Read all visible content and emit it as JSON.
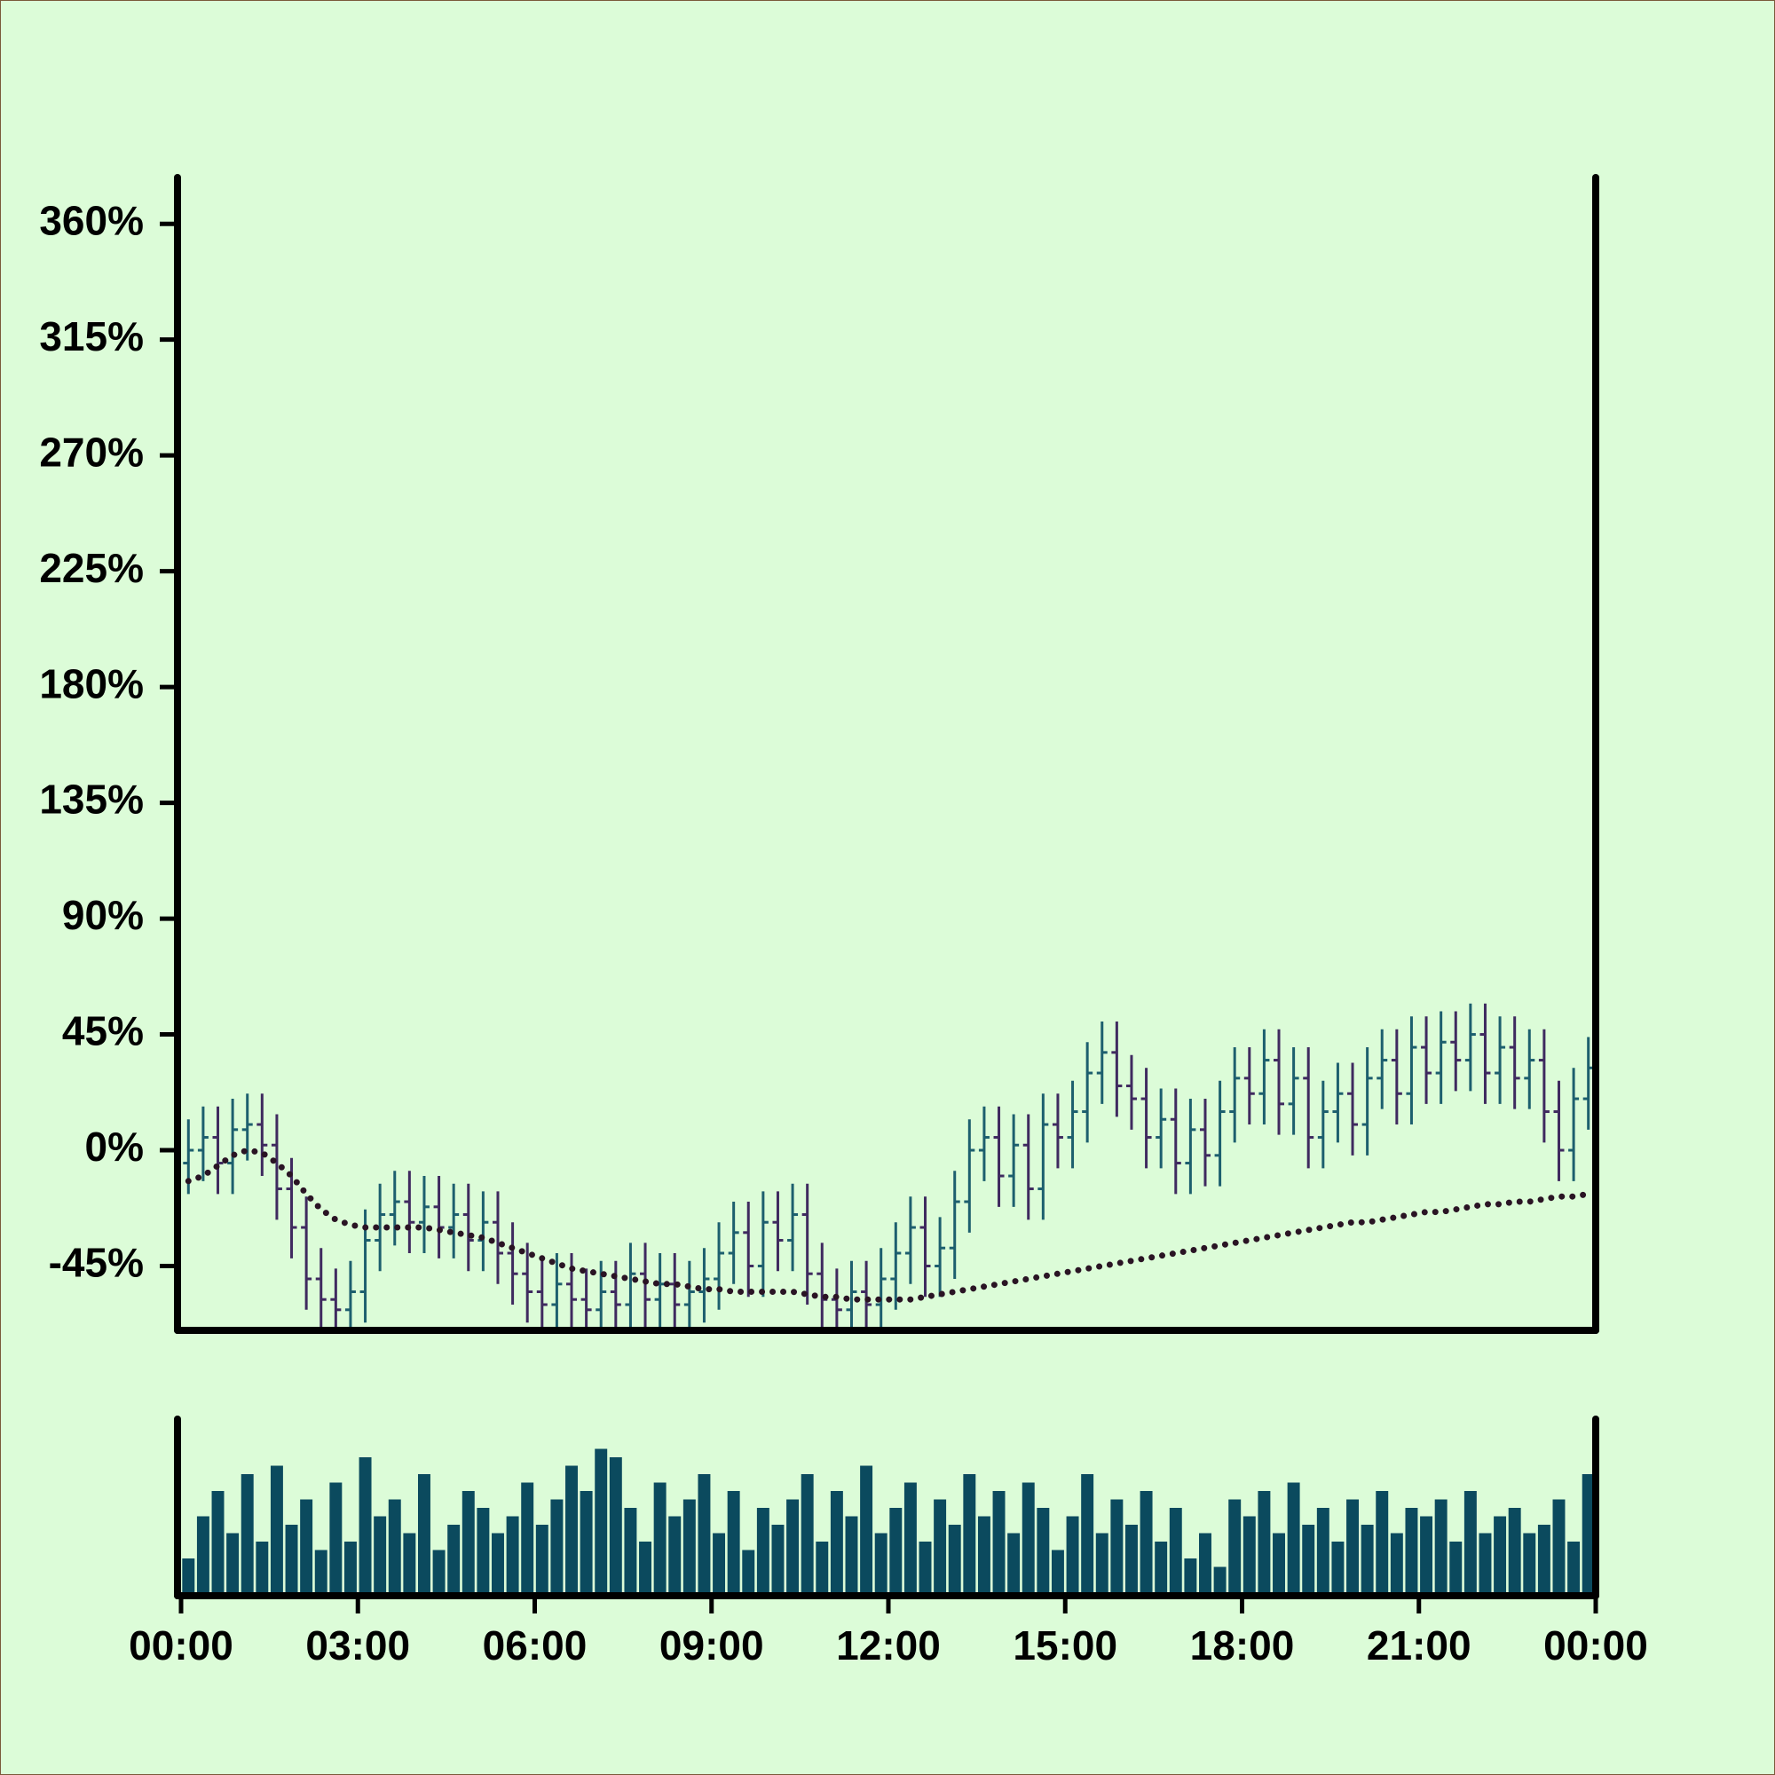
{
  "chart_data": {
    "type": "ohlc",
    "x": [
      0.125,
      0.375,
      0.625,
      0.875,
      1.125,
      1.375,
      1.625,
      1.875,
      2.125,
      2.375,
      2.625,
      2.875,
      3.125,
      3.375,
      3.625,
      3.875,
      4.125,
      4.375,
      4.625,
      4.875,
      5.125,
      5.375,
      5.625,
      5.875,
      6.125,
      6.375,
      6.625,
      6.875,
      7.125,
      7.375,
      7.625,
      7.875,
      8.125,
      8.375,
      8.625,
      8.875,
      9.125,
      9.375,
      9.625,
      9.875,
      10.125,
      10.375,
      10.625,
      10.875,
      11.125,
      11.375,
      11.625,
      11.875,
      12.125,
      12.375,
      12.625,
      12.875,
      13.125,
      13.375,
      13.625,
      13.875,
      14.125,
      14.375,
      14.625,
      14.875,
      15.125,
      15.375,
      15.625,
      15.875,
      16.125,
      16.375,
      16.625,
      16.875,
      17.125,
      17.375,
      17.625,
      17.875,
      18.125,
      18.375,
      18.625,
      18.875,
      19.125,
      19.375,
      19.625,
      19.875,
      20.125,
      20.375,
      20.625,
      20.875,
      21.125,
      21.375,
      21.625,
      21.875,
      22.125,
      22.375,
      22.625,
      22.875,
      23.125,
      23.375,
      23.625,
      23.875
    ],
    "open": [
      -5,
      0,
      5,
      -5,
      8,
      10,
      2,
      -15,
      -30,
      -50,
      -58,
      -62,
      -55,
      -35,
      -25,
      -20,
      -28,
      -22,
      -30,
      -25,
      -35,
      -28,
      -40,
      -48,
      -55,
      -60,
      -52,
      -58,
      -62,
      -55,
      -60,
      -48,
      -58,
      -52,
      -60,
      -55,
      -50,
      -40,
      -32,
      -45,
      -28,
      -35,
      -25,
      -48,
      -58,
      -62,
      -55,
      -60,
      -50,
      -40,
      -30,
      -45,
      -38,
      -20,
      0,
      5,
      -10,
      2,
      -15,
      10,
      5,
      15,
      30,
      38,
      25,
      20,
      5,
      12,
      -5,
      8,
      -2,
      15,
      28,
      22,
      35,
      18,
      28,
      5,
      15,
      22,
      10,
      28,
      35,
      22,
      40,
      30,
      42,
      35,
      45,
      30,
      40,
      28,
      35,
      15,
      0,
      20
    ],
    "high": [
      12,
      17,
      17,
      20,
      22,
      22,
      14,
      -3,
      -18,
      -38,
      -46,
      -43,
      -23,
      -13,
      -8,
      -8,
      -10,
      -10,
      -13,
      -13,
      -16,
      -16,
      -28,
      -36,
      -43,
      -40,
      -40,
      -46,
      -43,
      -43,
      -36,
      -36,
      -40,
      -40,
      -43,
      -38,
      -28,
      -20,
      -20,
      -16,
      -16,
      -13,
      -13,
      -36,
      -46,
      -43,
      -43,
      -38,
      -28,
      -18,
      -18,
      -26,
      -8,
      12,
      17,
      17,
      14,
      14,
      22,
      22,
      27,
      42,
      50,
      50,
      37,
      32,
      24,
      24,
      20,
      20,
      27,
      40,
      40,
      47,
      47,
      40,
      40,
      27,
      34,
      34,
      40,
      47,
      47,
      52,
      52,
      54,
      54,
      57,
      57,
      52,
      52,
      47,
      47,
      27,
      32,
      44
    ],
    "low": [
      -17,
      -12,
      -17,
      -17,
      -4,
      -10,
      -27,
      -42,
      -62,
      -70,
      -74,
      -74,
      -67,
      -47,
      -37,
      -40,
      -40,
      -42,
      -42,
      -47,
      -47,
      -52,
      -60,
      -67,
      -72,
      -72,
      -70,
      -74,
      -74,
      -72,
      -72,
      -70,
      -70,
      -72,
      -72,
      -67,
      -62,
      -52,
      -57,
      -57,
      -47,
      -47,
      -60,
      -70,
      -74,
      -74,
      -72,
      -72,
      -62,
      -52,
      -57,
      -57,
      -50,
      -32,
      -12,
      -22,
      -22,
      -27,
      -27,
      -7,
      -7,
      3,
      18,
      13,
      8,
      -7,
      -7,
      -17,
      -17,
      -14,
      -14,
      3,
      10,
      10,
      6,
      6,
      -7,
      -7,
      3,
      -2,
      -2,
      16,
      10,
      10,
      18,
      18,
      23,
      23,
      18,
      18,
      16,
      16,
      3,
      -12,
      -12,
      8
    ],
    "close": [
      0,
      5,
      -5,
      8,
      10,
      2,
      -15,
      -30,
      -50,
      -58,
      -62,
      -55,
      -35,
      -25,
      -20,
      -28,
      -22,
      -30,
      -25,
      -35,
      -28,
      -40,
      -48,
      -55,
      -60,
      -52,
      -58,
      -62,
      -55,
      -60,
      -48,
      -58,
      -52,
      -60,
      -55,
      -50,
      -40,
      -32,
      -45,
      -28,
      -35,
      -25,
      -48,
      -58,
      -62,
      -55,
      -60,
      -50,
      -40,
      -30,
      -45,
      -38,
      -20,
      0,
      5,
      -10,
      2,
      -15,
      10,
      5,
      15,
      30,
      38,
      25,
      20,
      5,
      12,
      -5,
      8,
      -2,
      15,
      28,
      22,
      35,
      18,
      28,
      5,
      15,
      22,
      10,
      28,
      35,
      22,
      40,
      30,
      42,
      35,
      45,
      30,
      40,
      28,
      35,
      15,
      0,
      20,
      32
    ],
    "up_color": "#1d5f6e",
    "down_color": "#3f2a5f",
    "moving_average": {
      "color": "#2a1424",
      "values": [
        -12,
        -10,
        -6,
        -2,
        0,
        -1,
        -5,
        -10,
        -17,
        -23,
        -27,
        -29,
        -30,
        -30,
        -30,
        -30,
        -30,
        -31,
        -32,
        -33,
        -34,
        -36,
        -38,
        -40,
        -42,
        -44,
        -46,
        -47,
        -48,
        -49,
        -50,
        -51,
        -52,
        -52,
        -53,
        -54,
        -54,
        -55,
        -55,
        -55,
        -55,
        -55,
        -56,
        -57,
        -57,
        -58,
        -58,
        -58,
        -58,
        -58,
        -57,
        -56,
        -55,
        -54,
        -53,
        -52,
        -51,
        -50,
        -49,
        -48,
        -47,
        -46,
        -45,
        -44,
        -43,
        -42,
        -41,
        -40,
        -39,
        -38,
        -37,
        -36,
        -35,
        -34,
        -33,
        -32,
        -31,
        -30,
        -29,
        -28,
        -28,
        -27,
        -26,
        -25,
        -24,
        -24,
        -23,
        -22,
        -21,
        -21,
        -20,
        -20,
        -19,
        -18,
        -18,
        -17
      ]
    },
    "volume": {
      "color": "#0b4a5e",
      "ylim": [
        0,
        100
      ],
      "values": [
        20,
        45,
        60,
        35,
        70,
        30,
        75,
        40,
        55,
        25,
        65,
        30,
        80,
        45,
        55,
        35,
        70,
        25,
        40,
        60,
        50,
        35,
        45,
        65,
        40,
        55,
        75,
        60,
        85,
        80,
        50,
        30,
        65,
        45,
        55,
        70,
        35,
        60,
        25,
        50,
        40,
        55,
        70,
        30,
        60,
        45,
        75,
        35,
        50,
        65,
        30,
        55,
        40,
        70,
        45,
        60,
        35,
        65,
        50,
        25,
        45,
        70,
        35,
        55,
        40,
        60,
        30,
        50,
        20,
        35,
        15,
        55,
        45,
        60,
        35,
        65,
        40,
        50,
        30,
        55,
        40,
        60,
        35,
        50,
        45,
        55,
        30,
        60,
        35,
        45,
        50,
        35,
        40,
        55,
        30,
        70
      ]
    },
    "xlim": [
      0,
      24
    ],
    "xticks": [
      {
        "value": 0,
        "label": "00:00"
      },
      {
        "value": 3,
        "label": "03:00"
      },
      {
        "value": 6,
        "label": "06:00"
      },
      {
        "value": 9,
        "label": "09:00"
      },
      {
        "value": 12,
        "label": "12:00"
      },
      {
        "value": 15,
        "label": "15:00"
      },
      {
        "value": 18,
        "label": "18:00"
      },
      {
        "value": 21,
        "label": "21:00"
      },
      {
        "value": 24,
        "label": "00:00"
      }
    ],
    "ylim": [
      -70,
      378
    ],
    "yticks": [
      {
        "value": -45,
        "label": "-45%"
      },
      {
        "value": 0,
        "label": "0%"
      },
      {
        "value": 45,
        "label": "45%"
      },
      {
        "value": 90,
        "label": "90%"
      },
      {
        "value": 135,
        "label": "135%"
      },
      {
        "value": 180,
        "label": "180%"
      },
      {
        "value": 225,
        "label": "225%"
      },
      {
        "value": 270,
        "label": "270%"
      },
      {
        "value": 315,
        "label": "315%"
      },
      {
        "value": 360,
        "label": "360%"
      }
    ]
  }
}
